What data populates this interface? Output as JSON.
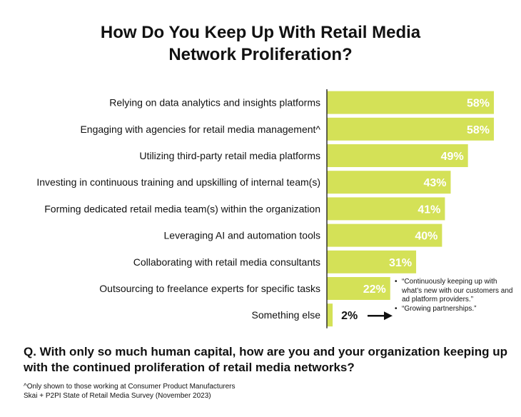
{
  "title_lines": [
    "How Do You Keep Up With Retail Media",
    "Network Proliferation?"
  ],
  "chart_data": {
    "type": "bar",
    "orientation": "horizontal",
    "bar_color": "#d4e157",
    "categories": [
      "Relying on data analytics and insights platforms",
      "Engaging with agencies for retail media management^",
      "Utilizing third-party retail media platforms",
      "Investing in continuous training and upskilling of internal team(s)",
      "Forming dedicated retail media team(s) within the organization",
      "Leveraging AI and automation tools",
      "Collaborating with retail media consultants",
      "Outsourcing to freelance experts for specific tasks",
      "Something else"
    ],
    "values": [
      58,
      58,
      49,
      43,
      41,
      40,
      31,
      22,
      2
    ],
    "value_labels": [
      "58%",
      "58%",
      "49%",
      "43%",
      "41%",
      "40%",
      "31%",
      "22%",
      "2%"
    ],
    "xlim": [
      0,
      58
    ]
  },
  "annotation": {
    "items": [
      "“Continuously keeping up with what’s new with our customers and ad platform providers.”",
      "“Growing partnerships.”"
    ]
  },
  "question": "Q. With only so much human capital, how are you and your organization keeping up with the continued proliferation of retail media networks?",
  "footnote": {
    "line1": "^Only shown to those working at Consumer Product Manufacturers",
    "line2": "Skai + P2PI State of Retail Media Survey (November 2023)"
  }
}
